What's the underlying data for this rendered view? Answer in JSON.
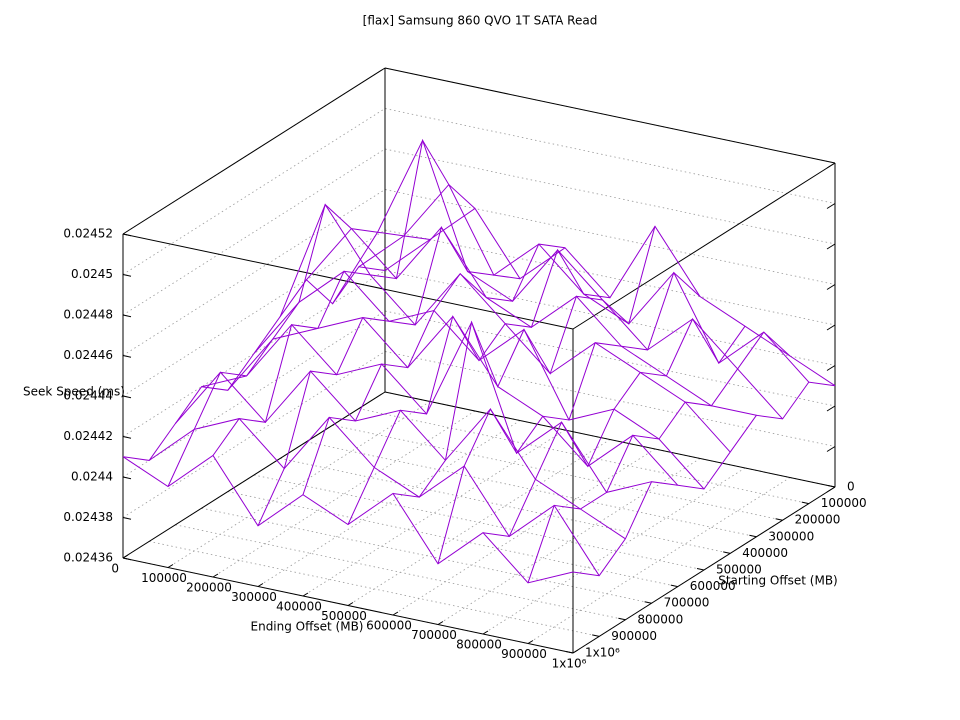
{
  "chart_data": {
    "type": "surface",
    "title": "[flax] Samsung 860 QVO 1T SATA Read",
    "xlabel": "Ending Offset (MB)",
    "ylabel": "Starting Offset (MB)",
    "zlabel": "Seek Speed (ms)",
    "x": [
      0,
      100000,
      200000,
      300000,
      400000,
      500000,
      600000,
      700000,
      800000,
      900000,
      1000000
    ],
    "y": [
      0,
      100000,
      200000,
      300000,
      400000,
      500000,
      600000,
      700000,
      800000,
      900000,
      1000000
    ],
    "z": [
      [
        0.02442,
        0.02444,
        0.02446,
        0.02443,
        0.02445,
        0.02443,
        0.02447,
        0.02444,
        0.02443,
        0.02442,
        0.02441
      ],
      [
        0.02443,
        0.02445,
        0.02448,
        0.02444,
        0.02446,
        0.02444,
        0.02443,
        0.02446,
        0.02442,
        0.02444,
        0.02442
      ],
      [
        0.02442,
        0.02446,
        0.02451,
        0.02445,
        0.02444,
        0.02447,
        0.02445,
        0.02443,
        0.02445,
        0.02443,
        0.02441
      ],
      [
        0.02444,
        0.02447,
        0.02445,
        0.02448,
        0.02445,
        0.02444,
        0.02446,
        0.02444,
        0.02443,
        0.02442,
        0.02442
      ],
      [
        0.02443,
        0.02449,
        0.02446,
        0.02444,
        0.02447,
        0.02445,
        0.02443,
        0.02445,
        0.02444,
        0.02443,
        0.02441
      ],
      [
        0.02442,
        0.02445,
        0.02447,
        0.02445,
        0.02446,
        0.02444,
        0.02446,
        0.02442,
        0.02443,
        0.02442,
        0.0244
      ],
      [
        0.02441,
        0.02444,
        0.02445,
        0.02446,
        0.02444,
        0.02447,
        0.02444,
        0.02443,
        0.02441,
        0.02443,
        0.02441
      ],
      [
        0.02442,
        0.02443,
        0.02446,
        0.02444,
        0.02445,
        0.02443,
        0.02448,
        0.02442,
        0.02444,
        0.02441,
        0.02442
      ],
      [
        0.02441,
        0.02444,
        0.02442,
        0.02445,
        0.02443,
        0.02444,
        0.02442,
        0.02445,
        0.02442,
        0.02441,
        0.0244
      ],
      [
        0.0244,
        0.02442,
        0.02443,
        0.02441,
        0.02444,
        0.02442,
        0.02441,
        0.02443,
        0.0244,
        0.02442,
        0.02439
      ],
      [
        0.02441,
        0.0244,
        0.02442,
        0.02439,
        0.02441,
        0.0244,
        0.02442,
        0.02439,
        0.02441,
        0.02439,
        0.0244
      ]
    ],
    "color": "#9400d3",
    "xlim": [
      0,
      1000000
    ],
    "ylim": [
      0,
      1000000
    ],
    "zlim": [
      0.02436,
      0.02452
    ],
    "xticks": [
      0,
      100000,
      200000,
      300000,
      400000,
      500000,
      600000,
      700000,
      800000,
      900000,
      {
        "value": 1000000,
        "label": "1x10⁶"
      }
    ],
    "yticks": [
      0,
      100000,
      200000,
      300000,
      400000,
      500000,
      600000,
      700000,
      800000,
      900000,
      {
        "value": 1000000,
        "label": "1x10⁶"
      }
    ],
    "zticks": [
      0.02436,
      0.02438,
      0.0244,
      0.02442,
      0.02444,
      0.02446,
      0.02448,
      0.0245,
      0.02452
    ],
    "grid": true
  }
}
